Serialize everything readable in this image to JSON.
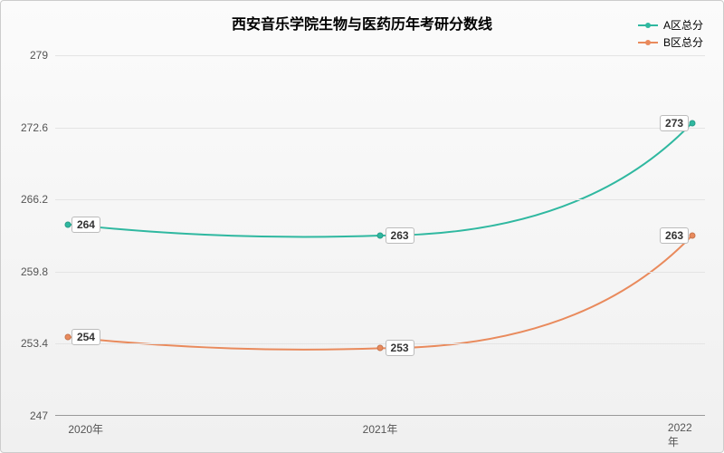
{
  "chart": {
    "type": "line",
    "title": "西安音乐学院生物与医药历年考研分数线",
    "title_fontsize": 16,
    "background_gradient": [
      "#fbfbfb",
      "#f0f0f0"
    ],
    "grid_color": "#e4e4e4",
    "axis_color": "#999999",
    "label_fontsize": 12,
    "x": {
      "categories": [
        "2020年",
        "2021年",
        "2022年"
      ],
      "positions_pct": [
        2,
        50,
        98
      ]
    },
    "y": {
      "min": 247,
      "max": 279,
      "ticks": [
        247,
        253.4,
        259.8,
        266.2,
        272.6,
        279
      ]
    },
    "series": [
      {
        "name": "A区总分",
        "color": "#2fb8a0",
        "values": [
          264,
          263,
          273
        ],
        "smooth": true
      },
      {
        "name": "B区总分",
        "color": "#e98a5c",
        "values": [
          254,
          253,
          263
        ],
        "smooth": true
      }
    ]
  }
}
